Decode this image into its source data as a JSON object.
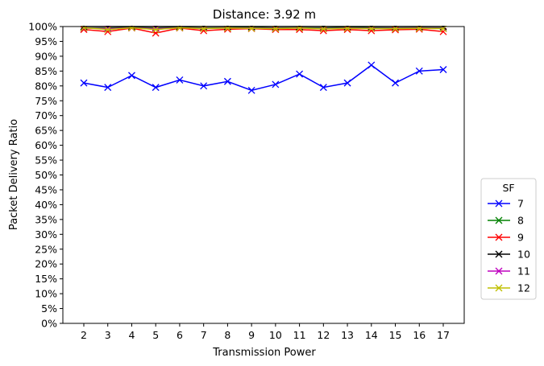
{
  "chart_data": {
    "type": "line",
    "title": "Distance: 3.92 m",
    "xlabel": "Transmission Power",
    "ylabel": "Packet Delivery Ratio",
    "x": [
      2,
      3,
      4,
      5,
      6,
      7,
      8,
      9,
      10,
      11,
      12,
      13,
      14,
      15,
      16,
      17
    ],
    "ylim": [
      0,
      100
    ],
    "y_tick_step": 5,
    "y_tick_format": "percent",
    "grid": false,
    "legend": {
      "title": "SF",
      "placement": "outside-right"
    },
    "series": [
      {
        "name": "7",
        "color": "#0000ff",
        "marker": "x",
        "values": [
          81,
          79.5,
          83.5,
          79.5,
          82,
          80,
          81.5,
          78.5,
          80.5,
          84,
          79.5,
          81,
          87,
          81,
          85,
          85.5
        ]
      },
      {
        "name": "8",
        "color": "#008000",
        "marker": "x",
        "values": [
          99.5,
          99.5,
          99.8,
          99.5,
          99.8,
          99.5,
          99.6,
          99.8,
          99.5,
          99.6,
          99.5,
          99.8,
          99.6,
          99.5,
          99.6,
          99.5
        ]
      },
      {
        "name": "9",
        "color": "#ff0000",
        "marker": "x",
        "values": [
          99,
          98.3,
          99.5,
          97.8,
          99.5,
          98.6,
          99.1,
          99.3,
          99,
          99,
          98.6,
          99,
          98.6,
          98.9,
          99.1,
          98.3
        ]
      },
      {
        "name": "10",
        "color": "#000000",
        "marker": "x",
        "values": [
          100,
          100,
          100,
          100,
          100,
          100,
          100,
          100,
          100,
          100,
          100,
          100,
          100,
          100,
          100,
          100
        ]
      },
      {
        "name": "11",
        "color": "#bf00bf",
        "marker": "x",
        "values": [
          99.5,
          99.3,
          99.6,
          99.3,
          99.6,
          99.4,
          99.5,
          99.5,
          99.4,
          99.5,
          99.3,
          99.5,
          99.4,
          99.4,
          99.5,
          99.4
        ]
      },
      {
        "name": "12",
        "color": "#bfbf00",
        "marker": "x",
        "values": [
          99.6,
          99,
          99.6,
          99,
          99.6,
          99.3,
          99.5,
          99.4,
          99.3,
          99.5,
          99.2,
          99.4,
          99.3,
          99.3,
          99.4,
          99.3
        ]
      }
    ]
  }
}
